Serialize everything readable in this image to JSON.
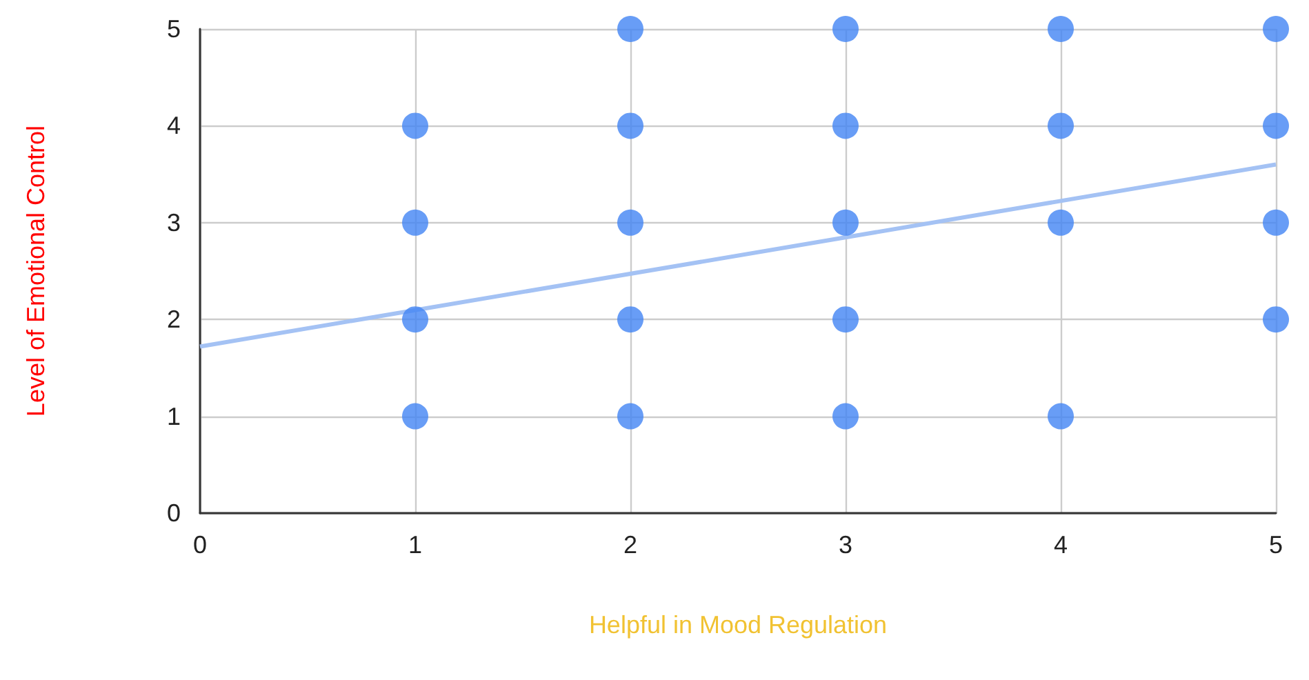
{
  "chart_data": {
    "type": "scatter",
    "xlabel": "Helpful in Mood Regulation",
    "ylabel": "Level of Emotional Control",
    "xlim": [
      0,
      5
    ],
    "xticks": [
      0,
      1,
      2,
      3,
      4,
      5
    ],
    "ylim": [
      0,
      5
    ],
    "yticks": [
      0,
      1,
      2,
      3,
      4,
      5
    ],
    "grid": true,
    "marker": "circle",
    "series": [
      {
        "color": "#4285f4",
        "x": [
          1,
          1,
          1,
          1,
          2,
          2,
          2,
          2,
          2,
          3,
          3,
          3,
          3,
          3,
          4,
          4,
          4,
          4,
          5,
          5,
          5,
          5
        ],
        "values": [
          1,
          2,
          3,
          4,
          1,
          2,
          3,
          4,
          5,
          1,
          2,
          3,
          4,
          5,
          1,
          3,
          4,
          5,
          2,
          3,
          4,
          5
        ]
      },
      {
        "type": "line",
        "color": "#a4c2f4",
        "x": [
          0,
          5
        ],
        "values": [
          1.72,
          3.6
        ],
        "marker": "none"
      }
    ]
  }
}
